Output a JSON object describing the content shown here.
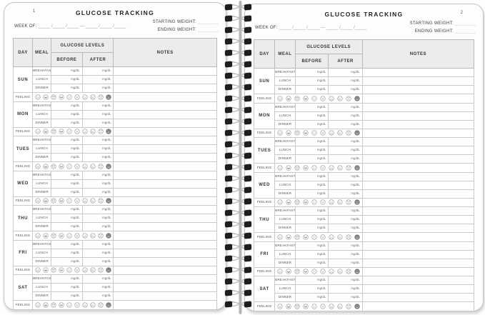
{
  "pages": [
    {
      "number": "1"
    },
    {
      "number": "2"
    }
  ],
  "header": {
    "title": "GLUCOSE TRACKING",
    "week_of_label": "WEEK OF:",
    "week_of_blanks": "_____ /_____ /_____   —   _____ /_____ /_____",
    "starting_weight_label": "STARTING WEIGHT:",
    "ending_weight_label": "ENDING WEIGHT:",
    "weight_blank": "________"
  },
  "table": {
    "columns": {
      "day": "DAY",
      "meal": "MEAL",
      "glucose_levels": "GLUCOSE LEVELS",
      "before": "BEFORE",
      "after": "AFTER",
      "notes": "NOTES"
    },
    "days": [
      "SUN",
      "MON",
      "TUES",
      "WED",
      "THU",
      "FRI",
      "SAT"
    ],
    "meals": [
      "BREAKFAST",
      "LUNCH",
      "DINNER"
    ],
    "unit": "mg/dL",
    "feeling_label": "FEELING",
    "feeling_icons": [
      "smiley-face-icon",
      "laughing-face-icon",
      "cool-face-icon",
      "grinning-face-icon",
      "neutral-face-icon",
      "slight-smile-face-icon",
      "frowning-face-icon",
      "crying-face-icon",
      "upset-face-icon",
      "angry-face-icon"
    ]
  },
  "spiral": {
    "loop_count": 27
  },
  "colors": {
    "page_border": "#c3c3c3",
    "table_header_bg": "#ececec",
    "grid_line": "#cacaca",
    "hole": "#1d1d1d",
    "wire": "#b4b4b4",
    "text": "#333333"
  }
}
